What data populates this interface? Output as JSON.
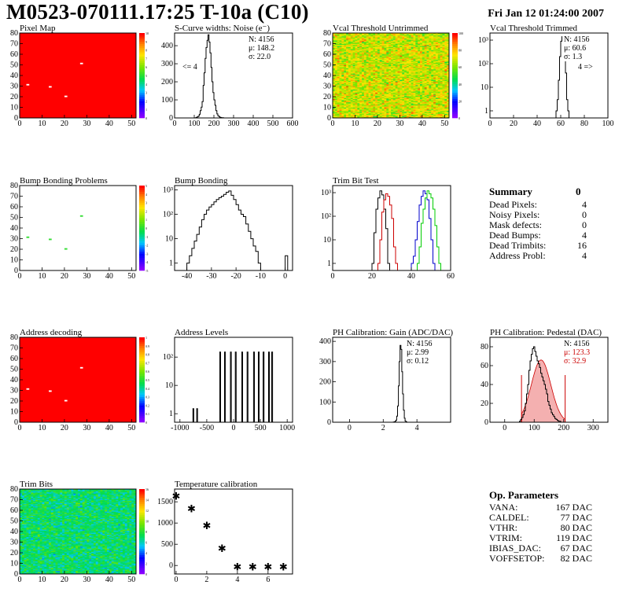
{
  "page": {
    "title": "M0523-070111.17:25 T-10a (C10)",
    "date": "Fri Jan 12 01:24:00 2007"
  },
  "summary": {
    "title": "Summary",
    "value": "0",
    "rows": [
      {
        "label": "Dead Pixels:",
        "value": "4"
      },
      {
        "label": "Noisy Pixels:",
        "value": "0"
      },
      {
        "label": "Mask defects:",
        "value": "0"
      },
      {
        "label": "Dead Bumps:",
        "value": "4"
      },
      {
        "label": "Dead Trimbits:",
        "value": "16"
      },
      {
        "label": "Address Probl:",
        "value": "4"
      }
    ]
  },
  "op_parameters": {
    "title": "Op. Parameters",
    "rows": [
      {
        "label": "VANA:",
        "value": "167 DAC"
      },
      {
        "label": "CALDEL:",
        "value": "77 DAC"
      },
      {
        "label": "VTHR:",
        "value": "80 DAC"
      },
      {
        "label": "VTRIM:",
        "value": "119 DAC"
      },
      {
        "label": "IBIAS_DAC:",
        "value": "67 DAC"
      },
      {
        "label": "VOFFSETOP:",
        "value": "82 DAC"
      }
    ]
  },
  "colors": {
    "frame": "#000000",
    "map_red": "#ff0000",
    "trim_red": "#cc0000",
    "trim_blue": "#0000cc",
    "trim_green": "#00cc00"
  },
  "chart_data": [
    {
      "id": "pixel_map",
      "type": "heatmap",
      "title": "Pixel Map",
      "xlim": [
        0,
        52
      ],
      "ylim": [
        0,
        80
      ],
      "xticks": [
        "0",
        "10",
        "20",
        "30",
        "40",
        "50"
      ],
      "yticks": [
        "0",
        "10",
        "20",
        "30",
        "40",
        "50",
        "60",
        "70",
        "80"
      ],
      "palette": "rainbow",
      "zlim": [
        0,
        10
      ],
      "zticks": [
        "0",
        "1",
        "2",
        "3",
        "4",
        "5",
        "6",
        "7",
        "8",
        "9",
        "10"
      ],
      "fill_value": 10,
      "hot_pixels": [
        [
          3,
          31
        ],
        [
          13,
          29
        ],
        [
          20,
          20
        ],
        [
          27,
          51
        ]
      ],
      "hot_value": 0
    },
    {
      "id": "scurve",
      "type": "histogram",
      "title": "S-Curve widths: Noise (e⁻)",
      "xlim": [
        0,
        600
      ],
      "ylog": false,
      "ylim": [
        0,
        470
      ],
      "xticks": [
        "0",
        "100",
        "200",
        "300",
        "400",
        "500",
        "600"
      ],
      "yticks": [
        "0",
        "100",
        "200",
        "300",
        "400"
      ],
      "hist": {
        "x0": 60,
        "dx": 5,
        "counts": [
          0,
          0,
          0,
          0,
          0,
          0,
          0,
          0,
          0,
          1,
          3,
          6,
          10,
          20,
          40,
          60,
          90,
          180,
          250,
          330,
          390,
          430,
          460,
          420,
          360,
          280,
          200,
          140,
          100,
          70,
          40,
          22,
          12,
          8,
          4,
          2,
          1,
          1,
          0,
          0,
          0,
          0,
          0,
          0,
          0,
          0,
          0,
          0,
          0,
          0,
          0,
          0,
          0,
          0
        ]
      },
      "stats": [
        "N: 4156",
        "μ: 148.2",
        "σ: 22.0"
      ],
      "annotation": "<= 4"
    },
    {
      "id": "vcal_untrimmed",
      "type": "heatmap",
      "title": "Vcal Threshold Untrimmed",
      "xlim": [
        0,
        52
      ],
      "ylim": [
        0,
        80
      ],
      "xticks": [
        "0",
        "10",
        "20",
        "30",
        "40",
        "50"
      ],
      "yticks": [
        "0",
        "10",
        "20",
        "30",
        "40",
        "50",
        "60",
        "70",
        "80"
      ],
      "palette": "rainbow",
      "zlim": [
        0,
        115
      ],
      "zticks": [
        "0",
        "20",
        "40",
        "60",
        "80",
        "100"
      ],
      "noise": {
        "center": 80,
        "spread": 20,
        "seed": 7
      }
    },
    {
      "id": "vcal_trimmed",
      "type": "histogram",
      "title": "Vcal Threshold Trimmed",
      "xlim": [
        0,
        100
      ],
      "ylog": true,
      "ylim": [
        0.5,
        2000
      ],
      "xticks": [
        "0",
        "20",
        "40",
        "60",
        "80",
        "100"
      ],
      "yticks": [
        "1",
        "10",
        "10²",
        "10³"
      ],
      "hist": {
        "x0": 55,
        "dx": 1,
        "counts": [
          0,
          1,
          3,
          20,
          200,
          900,
          1400,
          900,
          300,
          40,
          3,
          1,
          0
        ]
      },
      "stats": [
        "N: 4156",
        "μ: 60.6",
        "σ: 1.3"
      ],
      "annotation": "4 =>"
    },
    {
      "id": "bump_problems",
      "type": "heatmap",
      "title": "Bump Bonding Problems",
      "xlim": [
        0,
        52
      ],
      "ylim": [
        0,
        80
      ],
      "xticks": [
        "0",
        "10",
        "20",
        "30",
        "40",
        "50"
      ],
      "yticks": [
        "0",
        "10",
        "20",
        "30",
        "40",
        "50",
        "60",
        "70",
        "80"
      ],
      "palette": "rainbow",
      "zlim": [
        -5,
        5
      ],
      "zticks": [
        "-5",
        "-4",
        "-3",
        "-2",
        "-1",
        "0",
        "1",
        "2",
        "3",
        "4",
        "5"
      ],
      "fill_value": null,
      "hot_pixels": [
        [
          3,
          31
        ],
        [
          13,
          29
        ],
        [
          20,
          20
        ],
        [
          27,
          51
        ]
      ],
      "hot_value": 1
    },
    {
      "id": "bump_bonding",
      "type": "histogram",
      "title": "Bump Bonding",
      "xlim": [
        -45,
        3
      ],
      "ylog": true,
      "ylim": [
        0.5,
        1500
      ],
      "xticks": [
        "-40",
        "-30",
        "-20",
        "-10",
        "0"
      ],
      "yticks": [
        "1",
        "10",
        "10²",
        "10³"
      ],
      "hist": {
        "x0": -40,
        "dx": 1,
        "counts": [
          1,
          2,
          4,
          8,
          15,
          30,
          60,
          100,
          150,
          200,
          250,
          320,
          400,
          480,
          550,
          650,
          800,
          900,
          600,
          400,
          250,
          150,
          100,
          80,
          40,
          20,
          10,
          5,
          3,
          1,
          0,
          0,
          0,
          0,
          0,
          0,
          0,
          0,
          0,
          0,
          2
        ]
      }
    },
    {
      "id": "trim_bit_test",
      "type": "histogram",
      "title": "Trim Bit Test",
      "xlim": [
        0,
        60
      ],
      "ylog": true,
      "ylim": [
        0.5,
        2000
      ],
      "xticks": [
        "0",
        "20",
        "40",
        "60"
      ],
      "yticks": [
        "1",
        "10",
        "10²",
        "10³"
      ],
      "series": [
        {
          "name": "",
          "color": "#000000",
          "hist": {
            "x0": 15,
            "dx": 1,
            "counts": [
              0,
              0,
              0,
              0,
              0,
              1,
              20,
              200,
              600,
              1200,
              800,
              200,
              30,
              1,
              0
            ]
          }
        },
        {
          "name": "",
          "color": "#cc0000",
          "hist": {
            "x0": 20,
            "dx": 1,
            "counts": [
              0,
              0,
              0,
              1,
              10,
              150,
              500,
              900,
              700,
              300,
              80,
              5,
              1,
              0
            ]
          }
        },
        {
          "name": "",
          "color": "#0000cc",
          "hist": {
            "x0": 38,
            "dx": 1,
            "counts": [
              0,
              0,
              1,
              2,
              10,
              60,
              300,
              700,
              1200,
              900,
              500,
              80,
              10,
              1,
              0
            ]
          }
        },
        {
          "name": "",
          "color": "#00cc00",
          "hist": {
            "x0": 40,
            "dx": 1,
            "counts": [
              0,
              0,
              0,
              1,
              5,
              50,
              200,
              600,
              1200,
              900,
              600,
              200,
              40,
              5,
              1,
              0
            ]
          }
        }
      ]
    },
    {
      "id": "address_decoding",
      "type": "heatmap",
      "title": "Address decoding",
      "xlim": [
        0,
        52
      ],
      "ylim": [
        0,
        80
      ],
      "xticks": [
        "0",
        "10",
        "20",
        "30",
        "40",
        "50"
      ],
      "yticks": [
        "0",
        "10",
        "20",
        "30",
        "40",
        "50",
        "60",
        "70",
        "80"
      ],
      "palette": "rainbow",
      "zlim": [
        0,
        1
      ],
      "zticks": [
        "0",
        "0.1",
        "0.2",
        "0.3",
        "0.4",
        "0.5",
        "0.6",
        "0.7",
        "0.8",
        "0.9",
        "1"
      ],
      "fill_value": 1,
      "hot_pixels": [
        [
          3,
          31
        ],
        [
          13,
          29
        ],
        [
          20,
          20
        ],
        [
          27,
          51
        ]
      ],
      "hot_value": 0
    },
    {
      "id": "address_levels",
      "type": "histogram",
      "title": "Address Levels",
      "xlim": [
        -1100,
        1100
      ],
      "ylog": true,
      "ylim": [
        0.5,
        500
      ],
      "xticks": [
        "-1000",
        "-500",
        "0",
        "500",
        "1000"
      ],
      "yticks": [
        "1",
        "10",
        "10²"
      ],
      "spikes": [
        [
          -750,
          1.5
        ],
        [
          -680,
          1.5
        ],
        [
          -250,
          150
        ],
        [
          -160,
          150
        ],
        [
          -50,
          150
        ],
        [
          40,
          150
        ],
        [
          160,
          150
        ],
        [
          260,
          150
        ],
        [
          380,
          150
        ],
        [
          470,
          150
        ],
        [
          560,
          150
        ],
        [
          660,
          150
        ],
        [
          720,
          150
        ]
      ]
    },
    {
      "id": "ph_gain",
      "type": "histogram",
      "title": "PH Calibration: Gain (ADC/DAC)",
      "xlim": [
        -1,
        6
      ],
      "ylog": false,
      "ylim": [
        0,
        420
      ],
      "xticks": [
        "0",
        "2",
        "4"
      ],
      "yticks": [
        "0",
        "100",
        "200",
        "300",
        "400"
      ],
      "hist": {
        "x0": 2.5,
        "dx": 0.05,
        "counts": [
          0,
          0,
          1,
          2,
          5,
          10,
          30,
          80,
          180,
          300,
          380,
          360,
          250,
          140,
          60,
          20,
          6,
          2,
          0,
          0
        ]
      },
      "stats": [
        "N: 4156",
        "μ: 2.99",
        "σ: 0.12"
      ]
    },
    {
      "id": "ph_pedestal",
      "type": "histogram",
      "title": "PH Calibration: Pedestal (DAC)",
      "xlim": [
        -50,
        350
      ],
      "ylog": false,
      "ylim": [
        0,
        90
      ],
      "xticks": [
        "0",
        "100",
        "200",
        "300"
      ],
      "yticks": [
        "0",
        "20",
        "40",
        "60",
        "80"
      ],
      "hist": {
        "x0": 50,
        "dx": 4,
        "counts": [
          1,
          3,
          5,
          8,
          12,
          20,
          30,
          40,
          55,
          65,
          72,
          78,
          80,
          75,
          70,
          65,
          62,
          58,
          52,
          48,
          44,
          40,
          35,
          30,
          22,
          18,
          14,
          10,
          8,
          6,
          4,
          3,
          2,
          1,
          1,
          0,
          0,
          0,
          0,
          0,
          0,
          0,
          0
        ]
      },
      "fit": {
        "mu": 123.3,
        "sigma": 32.9,
        "amp": 66
      },
      "cut_lines": [
        57,
        205
      ],
      "stats": [
        "N: 4156",
        "μ: 123.3",
        "σ: 32.9"
      ]
    },
    {
      "id": "trim_bits",
      "type": "heatmap",
      "title": "Trim Bits",
      "xlim": [
        0,
        52
      ],
      "ylim": [
        0,
        80
      ],
      "xticks": [
        "0",
        "10",
        "20",
        "30",
        "40",
        "50"
      ],
      "yticks": [
        "0",
        "10",
        "20",
        "30",
        "40",
        "50",
        "60",
        "70",
        "80"
      ],
      "palette": "rainbow",
      "zlim": [
        0,
        16
      ],
      "zticks": [
        "0",
        "2",
        "4",
        "6",
        "8",
        "10",
        "12",
        "14",
        "16"
      ],
      "noise": {
        "center": 7,
        "spread": 2,
        "seed": 11
      }
    },
    {
      "id": "temperature",
      "type": "scatter",
      "title": "Temperature calibration",
      "xlim": [
        -0.1,
        7.6
      ],
      "ylim": [
        -200,
        1800
      ],
      "xticks": [
        "0",
        "2",
        "4",
        "6"
      ],
      "yticks": [
        "0",
        "500",
        "1000",
        "1500"
      ],
      "points": [
        [
          0,
          1640
        ],
        [
          1,
          1350
        ],
        [
          2,
          950
        ],
        [
          3,
          410
        ],
        [
          4,
          -20
        ],
        [
          5,
          -20
        ],
        [
          6,
          -20
        ],
        [
          7,
          -20
        ]
      ]
    }
  ]
}
